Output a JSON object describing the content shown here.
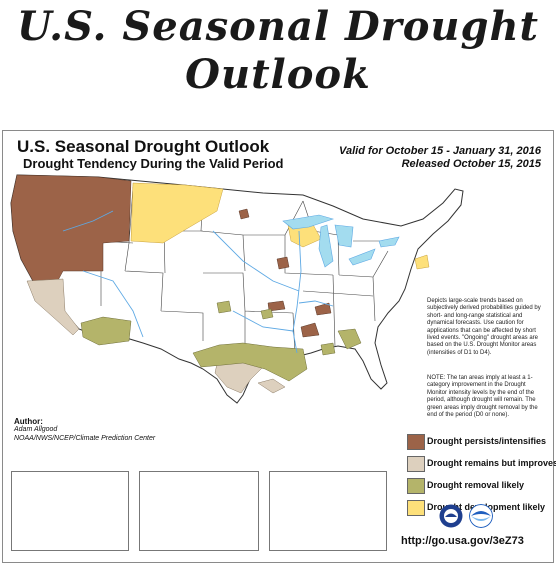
{
  "page_title_line1": "U.S. Seasonal Drought",
  "page_title_line2": "Outlook",
  "map": {
    "title": "U.S. Seasonal Drought Outlook",
    "subtitle": "Drought Tendency During the Valid Period",
    "valid": "Valid for October 15 - January 31, 2016",
    "released": "Released October 15, 2015",
    "note1": "Depicts large-scale trends based on subjectively derived probabilities guided by short- and long-range statistical and dynamical forecasts. Use caution for applications that can be affected by short lived events. \"Ongoing\" drought areas are based on the U.S. Drought Monitor areas (intensities of D1 to D4).",
    "note2": "NOTE: The tan areas imply at least a 1-category improvement in the Drought Monitor intensity levels by the end of the period, although drought will remain. The green areas imply drought removal by the end of the period (D0 or none).",
    "author_heading": "Author:",
    "author_name": "Adam Allgood",
    "author_org": "NOAA/NWS/NCEP/Climate Prediction Center",
    "url": "http://go.usa.gov/3eZ73",
    "legend": [
      {
        "label": "Drought persists/intensifies",
        "color": "#9c6348"
      },
      {
        "label": "Drought remains but improves",
        "color": "#ddd0be"
      },
      {
        "label": "Drought removal likely",
        "color": "#b4b46a"
      },
      {
        "label": "Drought development likely",
        "color": "#fde07a"
      }
    ],
    "colors": {
      "water": "#a3dcef",
      "river": "#5ea9e4",
      "border": "#333333"
    }
  }
}
